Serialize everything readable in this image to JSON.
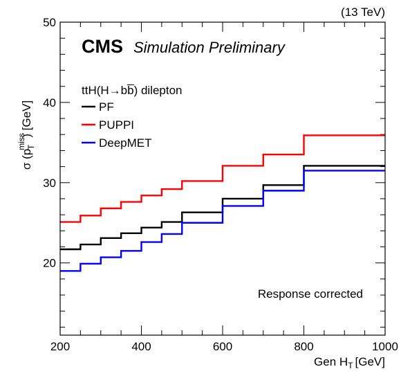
{
  "chart_data": {
    "type": "line",
    "step": true,
    "lumi_label": "(13 TeV)",
    "experiment": "CMS",
    "experiment_sub": "Simulation Preliminary",
    "legend_header": "ttH(H→bb̅) dilepton",
    "annotation": "Response corrected",
    "xlabel": "Gen H",
    "xlabel_sub": "T",
    "xlabel_unit": "[GeV]",
    "ylabel_prefix": "σ (p",
    "ylabel_sub": "T",
    "ylabel_sup": "miss",
    "ylabel_suffix": ") [GeV]",
    "xlim": [
      200,
      1000
    ],
    "ylim": [
      11,
      50
    ],
    "xticks": [
      200,
      400,
      600,
      800,
      1000
    ],
    "yticks": [
      20,
      30,
      40,
      50
    ],
    "bin_edges": [
      200,
      250,
      300,
      350,
      400,
      450,
      500,
      600,
      700,
      800,
      1000
    ],
    "series": [
      {
        "name": "PF",
        "color": "#000000",
        "values": [
          21.7,
          22.3,
          23.1,
          23.7,
          24.4,
          25.1,
          26.3,
          28.0,
          29.7,
          32.1
        ]
      },
      {
        "name": "PUPPI",
        "color": "#ff0000",
        "values": [
          25.1,
          25.9,
          26.8,
          27.6,
          28.4,
          29.2,
          30.2,
          32.1,
          33.5,
          35.9
        ]
      },
      {
        "name": "DeepMET",
        "color": "#0000ff",
        "values": [
          19.0,
          19.9,
          20.7,
          21.5,
          22.6,
          23.6,
          25.0,
          27.1,
          29.0,
          31.5
        ]
      }
    ]
  }
}
